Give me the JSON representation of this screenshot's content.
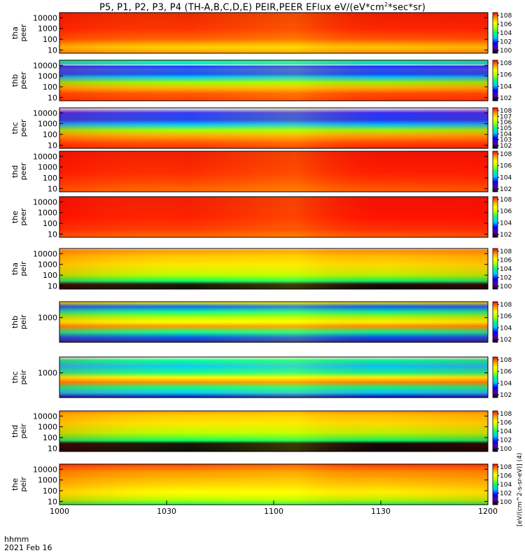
{
  "title": "P5, P1, P2, P3, P4 (TH-A,B,C,D,E) PEIR,PEER EFlux eV/(eV*cm",
  "title_sup": "2",
  "title_tail": "*sec*sr)",
  "footer": {
    "line1": "hhmm",
    "line2": "2021 Feb 16"
  },
  "colorbar_label": "[eV/(cm^2-s-sr-eV)] (4)",
  "chart_data": {
    "type": "heatmap",
    "x_axis": {
      "ticks": [
        "1000",
        "1030",
        "1100",
        "1130",
        "1200"
      ]
    },
    "panels": [
      {
        "probe": "tha",
        "product": "peer",
        "yticks": [
          "10",
          "100",
          "1000",
          "10000"
        ],
        "cbticks": [
          "10^0",
          "10^2",
          "10^4",
          "10^6",
          "10^8"
        ]
      },
      {
        "probe": "thb",
        "product": "peer",
        "yticks": [
          "10",
          "100",
          "1000",
          "10000"
        ],
        "cbticks": [
          "10^2",
          "10^4",
          "10^6",
          "10^8"
        ]
      },
      {
        "probe": "thc",
        "product": "peer",
        "yticks": [
          "10",
          "100",
          "1000",
          "10000"
        ],
        "cbticks": [
          "10^2",
          "10^3",
          "10^4",
          "10^5",
          "10^6",
          "10^7",
          "10^8"
        ]
      },
      {
        "probe": "thd",
        "product": "peer",
        "yticks": [
          "10",
          "100",
          "1000",
          "10000"
        ],
        "cbticks": [
          "10^2",
          "10^4",
          "10^6",
          "10^8"
        ]
      },
      {
        "probe": "the",
        "product": "peer",
        "yticks": [
          "10",
          "100",
          "1000",
          "10000"
        ],
        "cbticks": [
          "10^2",
          "10^4",
          "10^6",
          "10^8"
        ]
      },
      {
        "probe": "tha",
        "product": "peir",
        "yticks": [
          "10",
          "100",
          "1000",
          "10000"
        ],
        "cbticks": [
          "10^0",
          "10^2",
          "10^4",
          "10^6",
          "10^8"
        ]
      },
      {
        "probe": "thb",
        "product": "peir",
        "yticks": [
          "1000"
        ],
        "cbticks": [
          "10^2",
          "10^4",
          "10^6",
          "10^8"
        ]
      },
      {
        "probe": "thc",
        "product": "peir",
        "yticks": [
          "1000"
        ],
        "cbticks": [
          "10^2",
          "10^4",
          "10^6",
          "10^8"
        ]
      },
      {
        "probe": "thd",
        "product": "peir",
        "yticks": [
          "10",
          "100",
          "1000",
          "10000"
        ],
        "cbticks": [
          "10^0",
          "10^2",
          "10^4",
          "10^6",
          "10^8"
        ]
      },
      {
        "probe": "the",
        "product": "peir",
        "yticks": [
          "10",
          "100",
          "1000",
          "10000"
        ],
        "cbticks": [
          "10^0",
          "10^2",
          "10^4",
          "10^6",
          "10^8"
        ]
      }
    ],
    "colorscale": [
      "#000000",
      "#5a00a0",
      "#0000ff",
      "#00c8ff",
      "#00ff80",
      "#b4ff00",
      "#ffff00",
      "#ff9600",
      "#ff0000"
    ]
  }
}
